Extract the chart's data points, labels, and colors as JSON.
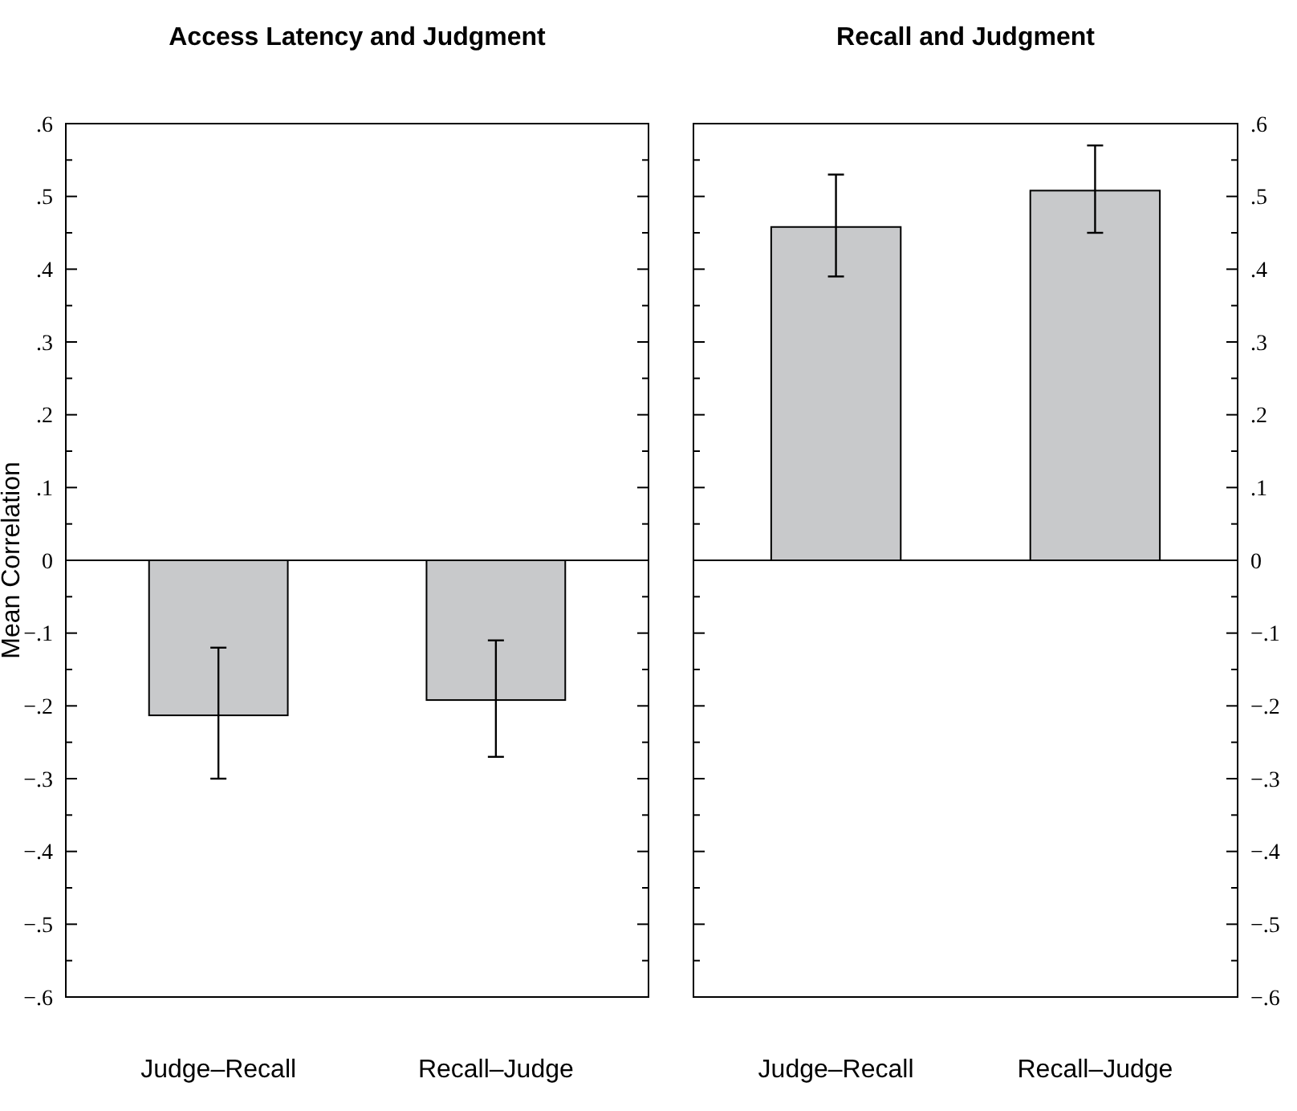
{
  "chart_data": [
    {
      "type": "bar",
      "title": "Access Latency and Judgment",
      "ylabel": "Mean Correlation",
      "categories": [
        "Judge–Recall",
        "Recall–Judge"
      ],
      "series": [
        {
          "color": "#c8c9cb",
          "values": [
            -0.213,
            -0.192
          ],
          "errors": [
            [
              -0.3,
              -0.12
            ],
            [
              -0.27,
              -0.11
            ]
          ]
        }
      ],
      "ylim": [
        -0.6,
        0.6
      ],
      "yticks": [
        {
          "value": -0.6,
          "label": "−.6"
        },
        {
          "value": -0.55,
          "label": null
        },
        {
          "value": -0.5,
          "label": "−.5"
        },
        {
          "value": -0.45,
          "label": null
        },
        {
          "value": -0.4,
          "label": "−.4"
        },
        {
          "value": -0.35,
          "label": null
        },
        {
          "value": -0.3,
          "label": "−.3"
        },
        {
          "value": -0.25,
          "label": null
        },
        {
          "value": -0.2,
          "label": "−.2"
        },
        {
          "value": -0.15,
          "label": null
        },
        {
          "value": -0.1,
          "label": "−.1"
        },
        {
          "value": -0.05,
          "label": null
        },
        0,
        {
          "value": 0.05,
          "label": null
        },
        {
          "value": 0.1,
          "label": ".1"
        },
        {
          "value": 0.15,
          "label": null
        },
        {
          "value": 0.2,
          "label": ".2"
        },
        {
          "value": 0.25,
          "label": null
        },
        {
          "value": 0.3,
          "label": ".3"
        },
        {
          "value": 0.35,
          "label": null
        },
        {
          "value": 0.4,
          "label": ".4"
        },
        {
          "value": 0.45,
          "label": null
        },
        {
          "value": 0.5,
          "label": ".5"
        },
        {
          "value": 0.55,
          "label": null
        },
        {
          "value": 0.6,
          "label": ".6"
        }
      ]
    },
    {
      "type": "bar",
      "title": "Recall and Judgment",
      "categories": [
        "Judge–Recall",
        "Recall–Judge"
      ],
      "series": [
        {
          "color": "#c8c9cb",
          "axis": "y2",
          "values": [
            0.458,
            0.508
          ],
          "errors": [
            [
              0.39,
              0.53
            ],
            [
              0.45,
              0.57
            ]
          ]
        }
      ],
      "y2lim": [
        -0.6,
        0.6
      ],
      "y2ticks": [
        {
          "value": -0.6,
          "label": "−.6"
        },
        {
          "value": -0.55,
          "label": null
        },
        {
          "value": -0.5,
          "label": "−.5"
        },
        {
          "value": -0.45,
          "label": null
        },
        {
          "value": -0.4,
          "label": "−.4"
        },
        {
          "value": -0.35,
          "label": null
        },
        {
          "value": -0.3,
          "label": "−.3"
        },
        {
          "value": -0.25,
          "label": null
        },
        {
          "value": -0.2,
          "label": "−.2"
        },
        {
          "value": -0.15,
          "label": null
        },
        {
          "value": -0.1,
          "label": "−.1"
        },
        {
          "value": -0.05,
          "label": null
        },
        0,
        {
          "value": 0.05,
          "label": null
        },
        {
          "value": 0.1,
          "label": ".1"
        },
        {
          "value": 0.15,
          "label": null
        },
        {
          "value": 0.2,
          "label": ".2"
        },
        {
          "value": 0.25,
          "label": null
        },
        {
          "value": 0.3,
          "label": ".3"
        },
        {
          "value": 0.35,
          "label": null
        },
        {
          "value": 0.4,
          "label": ".4"
        },
        {
          "value": 0.45,
          "label": null
        },
        {
          "value": 0.5,
          "label": ".5"
        },
        {
          "value": 0.55,
          "label": null
        },
        {
          "value": 0.6,
          "label": ".6"
        }
      ]
    }
  ]
}
